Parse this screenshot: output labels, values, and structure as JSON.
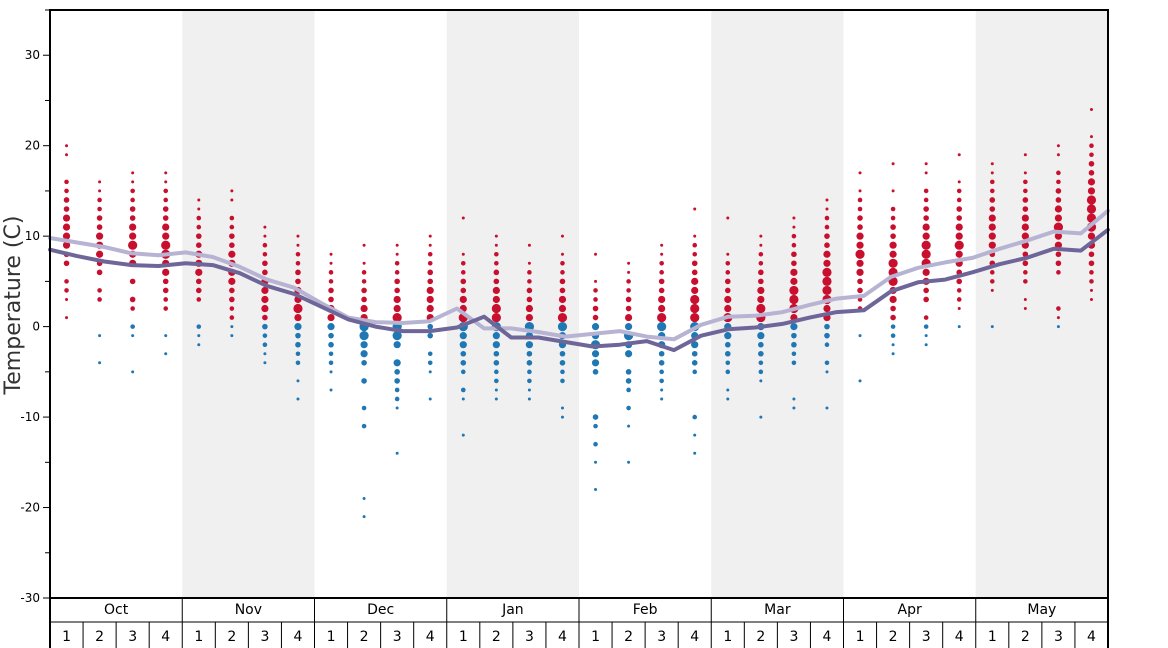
{
  "chart_data": {
    "type": "scatter",
    "ylabel": "Temperature (C)",
    "ylim": [
      -30,
      35
    ],
    "y_ticks": [
      -30,
      -20,
      -10,
      0,
      10,
      20,
      30
    ],
    "months": [
      "Oct",
      "Nov",
      "Dec",
      "Jan",
      "Feb",
      "Mar",
      "Apr",
      "May"
    ],
    "weeks": [
      "1",
      "2",
      "3",
      "4"
    ],
    "colors": {
      "warm_dots": "#c8102e",
      "cold_dots": "#1f77b4",
      "line_dark": "#6e6699",
      "line_light": "#b7b3d3",
      "band": "#f0f0f0"
    },
    "series": [
      {
        "name": "",
        "values": [
          8.5,
          7.8,
          7.2,
          6.8,
          6.7,
          7.0,
          6.8,
          5.9,
          4.5,
          3.6,
          2.2,
          0.8,
          0.0,
          -0.5,
          -0.5,
          -0.1,
          1.1,
          -1.2,
          -1.2,
          -1.7,
          -2.2,
          -2.0,
          -1.6,
          -2.6,
          -1.0,
          -0.3,
          -0.1,
          0.3,
          1.0,
          1.6,
          1.8,
          3.9,
          4.9,
          5.2,
          6.0,
          6.9,
          7.6,
          8.6,
          8.4,
          10.7
        ]
      },
      {
        "name": "",
        "values": [
          9.8,
          9.3,
          8.8,
          8.1,
          7.9,
          8.2,
          7.7,
          6.6,
          5.2,
          4.3,
          2.6,
          1.0,
          0.5,
          0.4,
          0.6,
          2.0,
          -0.2,
          -0.2,
          -0.6,
          -1.1,
          -0.8,
          -0.5,
          -1.1,
          -1.4,
          0.2,
          1.1,
          1.2,
          1.6,
          2.4,
          3.1,
          3.4,
          5.5,
          6.5,
          7.1,
          7.6,
          8.6,
          9.5,
          10.5,
          10.3,
          12.8
        ]
      }
    ],
    "readings": [
      {
        "week": 1,
        "values": [
          20,
          19,
          16,
          15,
          14,
          13,
          12,
          11,
          10,
          9,
          8,
          7,
          5,
          4,
          3,
          1
        ]
      },
      {
        "week": 2,
        "values": [
          16,
          15,
          14,
          13,
          12,
          11,
          10,
          9,
          8,
          7,
          6,
          4,
          3,
          -1,
          -4
        ]
      },
      {
        "week": 3,
        "values": [
          17,
          16,
          15,
          14,
          13,
          12,
          11,
          10,
          9,
          8,
          7,
          5,
          3,
          2,
          0,
          -1,
          -5
        ]
      },
      {
        "week": 4,
        "values": [
          17,
          16,
          15,
          14,
          13,
          12,
          11,
          10,
          9,
          8,
          7,
          6,
          5,
          4,
          3,
          2,
          -1,
          -3
        ]
      },
      {
        "week": 5,
        "values": [
          14,
          13,
          12,
          11,
          10,
          9,
          8,
          7,
          6,
          5,
          4,
          3,
          0,
          -1,
          -2
        ]
      },
      {
        "week": 6,
        "values": [
          15,
          14,
          12,
          11,
          10,
          9,
          8,
          7,
          6,
          5,
          4,
          3,
          2,
          1,
          0,
          -1
        ]
      },
      {
        "week": 7,
        "values": [
          11,
          10,
          9,
          8,
          7,
          6,
          5,
          4,
          3,
          2,
          1,
          0,
          -1,
          -2,
          -3,
          -4
        ]
      },
      {
        "week": 8,
        "values": [
          10,
          9,
          8,
          7,
          6,
          5,
          4,
          3,
          2,
          1,
          0,
          -1,
          -2,
          -3,
          -4,
          -6,
          -8
        ]
      },
      {
        "week": 9,
        "values": [
          8,
          7,
          6,
          5,
          4,
          3,
          2,
          1,
          0,
          -1,
          -2,
          -3,
          -4,
          -5,
          -7
        ]
      },
      {
        "week": 10,
        "values": [
          9,
          7,
          6,
          5,
          4,
          3,
          2,
          1,
          0,
          -1,
          -2,
          -3,
          -4,
          -6,
          -9,
          -11,
          -19,
          -21
        ]
      },
      {
        "week": 11,
        "values": [
          9,
          8,
          7,
          6,
          5,
          4,
          3,
          2,
          1,
          0,
          -1,
          -2,
          -4,
          -5,
          -6,
          -7,
          -8,
          -9,
          -14
        ]
      },
      {
        "week": 12,
        "values": [
          10,
          9,
          8,
          7,
          6,
          5,
          4,
          3,
          2,
          1,
          0,
          -1,
          -3,
          -4,
          -5,
          -8
        ]
      },
      {
        "week": 13,
        "values": [
          12,
          8,
          7,
          6,
          5,
          4,
          3,
          2,
          1,
          0,
          -1,
          -2,
          -3,
          -4,
          -5,
          -7,
          -8,
          -12
        ]
      },
      {
        "week": 14,
        "values": [
          10,
          9,
          8,
          7,
          6,
          5,
          4,
          3,
          2,
          1,
          0,
          -1,
          -2,
          -3,
          -4,
          -5,
          -6,
          -7,
          -8
        ]
      },
      {
        "week": 15,
        "values": [
          9,
          7,
          6,
          5,
          4,
          3,
          2,
          1,
          0,
          -1,
          -2,
          -3,
          -4,
          -5,
          -6,
          -7,
          -8
        ]
      },
      {
        "week": 16,
        "values": [
          10,
          8,
          7,
          6,
          5,
          4,
          3,
          2,
          1,
          0,
          -1,
          -2,
          -3,
          -4,
          -5,
          -6,
          -9,
          -10
        ]
      },
      {
        "week": 17,
        "values": [
          8,
          5,
          4,
          3,
          2,
          1,
          0,
          -1,
          -2,
          -3,
          -4,
          -5,
          -10,
          -11,
          -13,
          -15,
          -18
        ]
      },
      {
        "week": 18,
        "values": [
          7,
          6,
          5,
          4,
          3,
          2,
          1,
          0,
          -1,
          -2,
          -3,
          -5,
          -6,
          -7,
          -9,
          -11,
          -15
        ]
      },
      {
        "week": 19,
        "values": [
          9,
          8,
          7,
          6,
          5,
          4,
          3,
          2,
          1,
          0,
          -1,
          -2,
          -3,
          -4,
          -5,
          -6,
          -7,
          -8
        ]
      },
      {
        "week": 20,
        "values": [
          13,
          10,
          9,
          8,
          7,
          6,
          5,
          4,
          3,
          2,
          1,
          0,
          -1,
          -2,
          -3,
          -4,
          -5,
          -10,
          -12,
          -14
        ]
      },
      {
        "week": 21,
        "values": [
          12,
          8,
          7,
          6,
          5,
          4,
          3,
          2,
          1,
          0,
          -1,
          -2,
          -3,
          -4,
          -5,
          -7,
          -8
        ]
      },
      {
        "week": 22,
        "values": [
          10,
          9,
          8,
          7,
          6,
          5,
          4,
          3,
          2,
          1,
          0,
          -1,
          -2,
          -3,
          -4,
          -5,
          -6,
          -10
        ]
      },
      {
        "week": 23,
        "values": [
          12,
          11,
          10,
          9,
          8,
          7,
          6,
          5,
          4,
          3,
          2,
          1,
          0,
          -1,
          -2,
          -3,
          -4,
          -8,
          -9
        ]
      },
      {
        "week": 24,
        "values": [
          14,
          13,
          12,
          11,
          10,
          9,
          8,
          7,
          6,
          5,
          4,
          3,
          2,
          1,
          0,
          -1,
          -2,
          -4,
          -5,
          -9
        ]
      },
      {
        "week": 25,
        "values": [
          17,
          15,
          14,
          13,
          12,
          11,
          10,
          9,
          8,
          7,
          6,
          5,
          4,
          3,
          2,
          -1,
          -6
        ]
      },
      {
        "week": 26,
        "values": [
          18,
          15,
          13,
          12,
          11,
          10,
          9,
          8,
          7,
          6,
          5,
          4,
          3,
          2,
          1,
          0,
          -1,
          -2,
          -3
        ]
      },
      {
        "week": 27,
        "values": [
          18,
          17,
          15,
          14,
          13,
          12,
          11,
          10,
          9,
          8,
          7,
          6,
          5,
          4,
          3,
          1,
          0,
          -1,
          -2
        ]
      },
      {
        "week": 28,
        "values": [
          19,
          16,
          15,
          14,
          13,
          12,
          11,
          10,
          9,
          8,
          7,
          6,
          5,
          4,
          3,
          2,
          0
        ]
      },
      {
        "week": 29,
        "values": [
          18,
          17,
          16,
          15,
          14,
          13,
          12,
          11,
          10,
          9,
          8,
          7,
          6,
          5,
          4,
          0
        ]
      },
      {
        "week": 30,
        "values": [
          19,
          17,
          16,
          15,
          14,
          13,
          12,
          11,
          10,
          9,
          8,
          7,
          6,
          5,
          3,
          2
        ]
      },
      {
        "week": 31,
        "values": [
          20,
          19,
          17,
          16,
          15,
          14,
          13,
          12,
          11,
          10,
          9,
          8,
          7,
          6,
          2,
          1,
          0
        ]
      },
      {
        "week": 32,
        "values": [
          24,
          21,
          20,
          19,
          18,
          17,
          16,
          15,
          14,
          13,
          12,
          11,
          10,
          9,
          8,
          7,
          6,
          5,
          4,
          3
        ]
      }
    ]
  }
}
